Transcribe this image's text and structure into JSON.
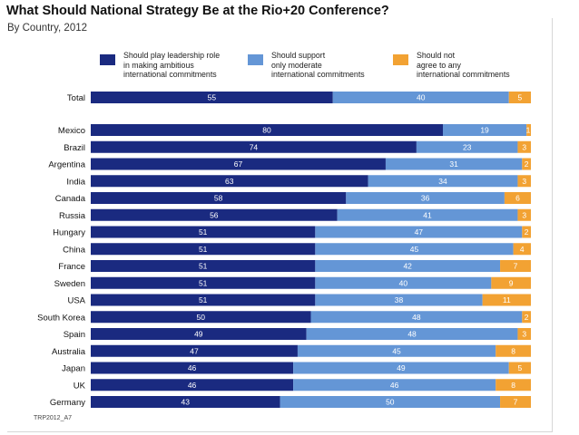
{
  "title": "What Should National Strategy Be at the Rio+20 Conference?",
  "subtitle": "By Country, 2012",
  "footnote": "TRP2012_A7",
  "legend": [
    {
      "lines": [
        "Should play leadership role",
        "in making ambitious",
        "international commitments"
      ],
      "color": "#1a2a80"
    },
    {
      "lines": [
        "Should support",
        "only moderate",
        "international commitments"
      ],
      "color": "#6496d6"
    },
    {
      "lines": [
        "Should not",
        "agree to any",
        "international commitments"
      ],
      "color": "#f2a233"
    }
  ],
  "chart_data": {
    "type": "bar",
    "orientation": "horizontal",
    "stacked": true,
    "title": "What Should National Strategy Be at the Rio+20 Conference?",
    "subtitle": "By Country, 2012",
    "categories": [
      "Total",
      "Mexico",
      "Brazil",
      "Argentina",
      "India",
      "Canada",
      "Russia",
      "Hungary",
      "China",
      "France",
      "Sweden",
      "USA",
      "South Korea",
      "Spain",
      "Australia",
      "Japan",
      "UK",
      "Germany"
    ],
    "series": [
      {
        "name": "Should play leadership role in making ambitious international commitments",
        "color": "#1a2a80",
        "values": [
          55,
          80,
          74,
          67,
          63,
          58,
          56,
          51,
          51,
          51,
          51,
          51,
          50,
          49,
          47,
          46,
          46,
          43
        ]
      },
      {
        "name": "Should support only moderate international commitments",
        "color": "#6496d6",
        "values": [
          40,
          19,
          23,
          31,
          34,
          36,
          41,
          47,
          45,
          42,
          40,
          38,
          48,
          48,
          45,
          49,
          46,
          50
        ]
      },
      {
        "name": "Should not agree to any international commitments",
        "color": "#f2a233",
        "values": [
          5,
          1,
          3,
          2,
          3,
          6,
          3,
          2,
          4,
          7,
          9,
          11,
          2,
          3,
          8,
          5,
          8,
          7
        ]
      }
    ],
    "data_labels": [
      [
        "55",
        "40",
        "5"
      ],
      [
        "80",
        "19",
        "1"
      ],
      [
        "74",
        "23",
        "3"
      ],
      [
        "67",
        "31",
        "2"
      ],
      [
        "63",
        "34",
        "3"
      ],
      [
        "58",
        "36",
        "6"
      ],
      [
        "56",
        "41",
        "3"
      ],
      [
        "51",
        "47",
        "2"
      ],
      [
        "51",
        "45",
        "4"
      ],
      [
        "51",
        "42",
        "7"
      ],
      [
        "51",
        "40",
        "9"
      ],
      [
        "51",
        "38",
        "11"
      ],
      [
        "50",
        "48",
        "2"
      ],
      [
        "49",
        "48",
        "3"
      ],
      [
        "47",
        "45",
        "8"
      ],
      [
        "46",
        "49",
        "5"
      ],
      [
        "46",
        "46",
        "8"
      ],
      [
        "43",
        "50",
        "7"
      ]
    ],
    "grid": false,
    "legend_position": "top"
  }
}
